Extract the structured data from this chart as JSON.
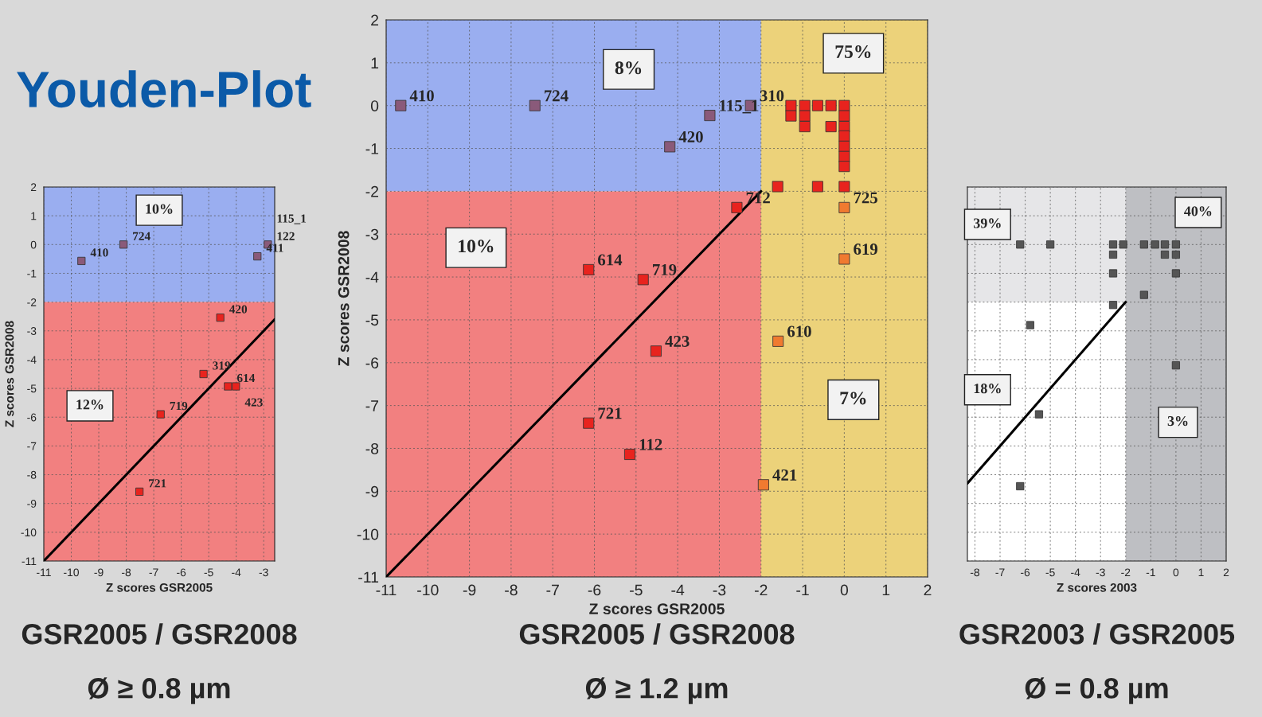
{
  "chart_data": [
    {
      "type": "other",
      "title": "Youden-Plot"
    },
    {
      "type": "scatter",
      "title": "GSR2005 / GSR2008",
      "subtitle": "Ø ≥ 0.8 µm",
      "xlabel": "Z scores GSR2005",
      "ylabel": "Z scores GSR2008",
      "xlim": [
        -11,
        -2.6
      ],
      "ylim": [
        -11,
        2
      ],
      "xticks": [
        -11,
        -10,
        -9,
        -8,
        -7,
        -6,
        -5,
        -4,
        -3
      ],
      "yticks": [
        -11,
        -10,
        -9,
        -8,
        -7,
        -6,
        -5,
        -4,
        -3,
        -2,
        -1,
        0,
        1,
        2
      ],
      "grid": true,
      "marker": "square",
      "bands": [
        {
          "axis": "y",
          "from": -2,
          "to": 2,
          "color": "#9aaef0"
        },
        {
          "axis": "y",
          "from": -11,
          "to": -2,
          "color": "#f28080"
        }
      ],
      "series": [
        {
          "color": "#8a5a7a",
          "x": [
            -8.1,
            -9.63,
            -3.23,
            -2.85
          ],
          "values": [
            0.0,
            -0.57,
            -0.41,
            0.0
          ]
        },
        {
          "color": "#e8231e",
          "x": [
            -4.58,
            -5.19,
            -4.3,
            -4.01,
            -6.75,
            -7.52
          ],
          "values": [
            -2.54,
            -4.5,
            -4.93,
            -4.93,
            -5.9,
            -8.59
          ]
        },
        {
          "type": "line",
          "color": "#000000",
          "marker": "none",
          "x": [
            -11,
            -2.6
          ],
          "values": [
            -11,
            -2.6
          ]
        }
      ],
      "annotations": [
        {
          "text": "724",
          "x": -8.1,
          "y": 0.0
        },
        {
          "text": "410",
          "x": -9.63,
          "y": -0.57
        },
        {
          "text": "411",
          "x": -3.23,
          "y": -0.41
        },
        {
          "text": "122",
          "x": -2.85,
          "y": 0.0
        },
        {
          "text": "115_1",
          "x": -2.85,
          "y": 0.0
        },
        {
          "text": "420",
          "x": -4.58,
          "y": -2.54
        },
        {
          "text": "319",
          "x": -5.19,
          "y": -4.5
        },
        {
          "text": "614",
          "x": -4.3,
          "y": -4.93
        },
        {
          "text": "423",
          "x": -4.01,
          "y": -4.93
        },
        {
          "text": "719",
          "x": -6.75,
          "y": -5.9
        },
        {
          "text": "721",
          "x": -7.52,
          "y": -8.59
        },
        "10%",
        "12%"
      ]
    },
    {
      "type": "scatter",
      "title": "GSR2005 / GSR2008",
      "subtitle": "Ø ≥ 1.2 µm",
      "xlabel": "Z scores GSR2005",
      "ylabel": "Z scores GSR2008",
      "xlim": [
        -11,
        2
      ],
      "ylim": [
        -11,
        2
      ],
      "xticks": [
        -11,
        -10,
        -9,
        -8,
        -7,
        -6,
        -5,
        -4,
        -3,
        -2,
        -1,
        0,
        1,
        2
      ],
      "yticks": [
        -11,
        -10,
        -9,
        -8,
        -7,
        -6,
        -5,
        -4,
        -3,
        -2,
        -1,
        0,
        1,
        2
      ],
      "grid": true,
      "marker": "square",
      "bands": [
        {
          "axis": "y",
          "from": -2,
          "to": 2,
          "color": "#9aaef0"
        },
        {
          "axis": "y",
          "from": -11,
          "to": -2,
          "color": "#f28080"
        },
        {
          "axis": "x",
          "from": -2,
          "to": 2,
          "color": "#ecd27a"
        }
      ],
      "series": [
        {
          "color": "#8a5a7a",
          "x": [
            -10.65,
            -7.43,
            -4.19,
            -3.23,
            -2.25
          ],
          "values": [
            0,
            0,
            -0.96,
            -0.23,
            0
          ]
        },
        {
          "color": "#e8231e",
          "x": [
            -1.28,
            -1.28,
            -0.95,
            -0.95,
            -0.95,
            -0.64,
            -0.32,
            -0.32,
            0,
            0,
            0,
            0,
            0,
            0,
            0,
            -1.6,
            -0.64,
            0,
            -2.58,
            -6.14,
            -4.83,
            -4.52,
            -6.14,
            -5.15
          ],
          "values": [
            0,
            -0.24,
            0,
            -0.24,
            -0.49,
            0,
            0,
            -0.49,
            0,
            -0.24,
            -0.49,
            -0.71,
            -0.95,
            -1.19,
            -1.42,
            -1.89,
            -1.89,
            -1.89,
            -2.38,
            -3.83,
            -4.06,
            -5.73,
            -7.41,
            -8.14
          ]
        },
        {
          "color": "#f07a30",
          "x": [
            0,
            0,
            -1.59,
            -1.94
          ],
          "values": [
            -2.38,
            -3.58,
            -5.5,
            -8.85
          ]
        },
        {
          "type": "line",
          "color": "#000000",
          "marker": "none",
          "x": [
            -11,
            -2
          ],
          "values": [
            -11,
            -2
          ]
        }
      ],
      "annotations": [
        {
          "text": "410",
          "x": -10.65,
          "y": 0
        },
        {
          "text": "724",
          "x": -7.43,
          "y": 0
        },
        {
          "text": "420",
          "x": -4.19,
          "y": -0.96
        },
        {
          "text": "115_1",
          "x": -3.23,
          "y": -0.23
        },
        {
          "text": "310",
          "x": -2.25,
          "y": 0
        },
        {
          "text": "712",
          "x": -2.58,
          "y": -2.38
        },
        {
          "text": "725",
          "x": 0,
          "y": -2.38
        },
        {
          "text": "619",
          "x": 0,
          "y": -3.58
        },
        {
          "text": "614",
          "x": -6.14,
          "y": -3.83
        },
        {
          "text": "719",
          "x": -4.83,
          "y": -4.06
        },
        {
          "text": "423",
          "x": -4.52,
          "y": -5.73
        },
        {
          "text": "610",
          "x": -1.59,
          "y": -5.5
        },
        {
          "text": "721",
          "x": -6.14,
          "y": -7.41
        },
        {
          "text": "112",
          "x": -5.15,
          "y": -8.14
        },
        {
          "text": "421",
          "x": -1.94,
          "y": -8.85
        },
        "8%",
        "75%",
        "10%",
        "7%"
      ]
    },
    {
      "type": "scatter",
      "title": "GSR2003 / GSR2005",
      "subtitle": "Ø = 0.8 µm",
      "xlabel": "Z scores 2003",
      "xlim": [
        -8.3,
        2
      ],
      "ylim": [
        -11,
        2
      ],
      "xticks": [
        -8,
        -7,
        -6,
        -5,
        -4,
        -3,
        -2,
        -1,
        0,
        1,
        2
      ],
      "yticks": [
        -11,
        -10,
        -9,
        -8,
        -7,
        -6,
        -5,
        -4,
        -3,
        -2,
        -1,
        0,
        1,
        2
      ],
      "tick_labels": "x",
      "grid": true,
      "marker": "square",
      "bands": [
        {
          "axis": "y",
          "from": -2,
          "to": 2,
          "color": "#e6e6e8"
        },
        {
          "axis": "x",
          "from": -2,
          "to": 2,
          "color": "#bebfc3"
        }
      ],
      "series": [
        {
          "color": "#555555",
          "x": [
            -6.2,
            -5.0,
            -2.5,
            -2.1,
            -1.27,
            -0.83,
            -0.44,
            0,
            -2.5,
            -0.44,
            0,
            -2.5,
            0,
            -1.27,
            -2.5,
            -5.8,
            0,
            -5.45,
            -6.2
          ],
          "values": [
            0,
            0,
            0,
            0,
            0,
            0,
            0,
            0,
            -0.35,
            -0.35,
            -0.35,
            -1.0,
            -1.0,
            -1.75,
            -2.1,
            -2.8,
            -4.2,
            -5.9,
            -8.4
          ]
        },
        {
          "type": "line",
          "color": "#000000",
          "marker": "none",
          "x": [
            -8.3,
            -2
          ],
          "values": [
            -8.3,
            -2
          ]
        }
      ],
      "annotations": [
        "40%",
        "3%",
        "39%",
        "18%"
      ]
    }
  ]
}
